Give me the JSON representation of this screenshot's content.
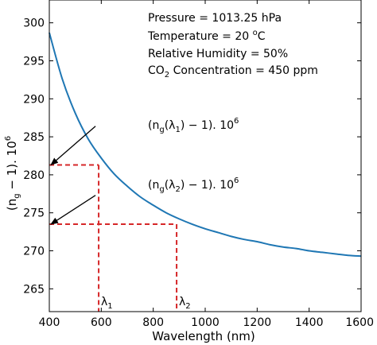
{
  "chart_data": {
    "type": "line",
    "xlabel": "Wavelength (nm)",
    "ylabel_parts": {
      "open": "(n",
      "sub": "g",
      "close": " − 1). 10",
      "sup": "6"
    },
    "xlim": [
      400,
      1600
    ],
    "ylim": [
      262,
      303
    ],
    "x_ticks": [
      400,
      600,
      800,
      1000,
      1200,
      1400,
      1600
    ],
    "y_ticks": [
      265,
      270,
      275,
      280,
      285,
      290,
      295,
      300
    ],
    "grid": false,
    "series": [
      {
        "color": "#1f77b4",
        "x": [
          400,
          450,
          500,
          550,
          600,
          650,
          700,
          750,
          800,
          850,
          900,
          950,
          1000,
          1050,
          1100,
          1150,
          1200,
          1250,
          1300,
          1350,
          1400,
          1450,
          1500,
          1550,
          1600
        ],
        "y": [
          298.7,
          292.6,
          288.1,
          284.7,
          282.2,
          280.1,
          278.5,
          277.1,
          276.0,
          275.0,
          274.2,
          273.5,
          272.9,
          272.4,
          271.9,
          271.5,
          271.2,
          270.8,
          270.5,
          270.3,
          270.0,
          269.8,
          269.6,
          269.4,
          269.3
        ]
      }
    ],
    "conditions": [
      "Pressure = 1013.25 hPa",
      "Temperature = 20 ",
      "Relative Humidity = 50%",
      "CO",
      " Concentration = 450 ppm"
    ],
    "temperature_unit": {
      "sup": "o",
      "tail": "C"
    },
    "co2_sub": "2",
    "markers": [
      {
        "x": 590,
        "y": 281.3,
        "lambda_label": "λ",
        "lambda_sub": "1",
        "ann_open": "(n",
        "ann_sub_g": "g",
        "ann_mid": "(λ",
        "ann_sub_l": "1",
        "ann_close": ") − 1). 10",
        "ann_sup": "6",
        "ann_x": 590,
        "ann_y": 286.4
      },
      {
        "x": 890,
        "y": 273.5,
        "lambda_label": "λ",
        "lambda_sub": "2",
        "ann_open": "(n",
        "ann_sub_g": "g",
        "ann_mid": "(λ",
        "ann_sub_l": "2",
        "ann_close": ") − 1). 10",
        "ann_sup": "6",
        "ann_x": 590,
        "ann_y": 277.3
      }
    ],
    "marker_color": "#d62728"
  }
}
